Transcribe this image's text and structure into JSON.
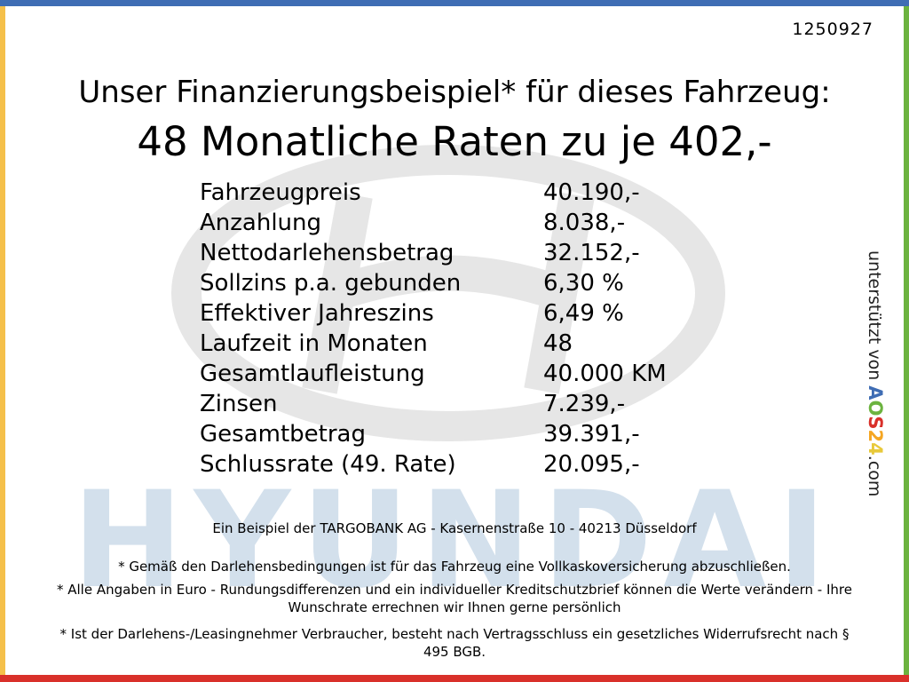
{
  "colors": {
    "top": "#3f6db4",
    "left": "#f5c04a",
    "right": "#6cb33f",
    "bottom": "#d9302a",
    "watermark_text": "#cfdcea",
    "watermark_logo": "#e4e4e4"
  },
  "watermark": {
    "brand": "HYUNDAI"
  },
  "ref_number": "1250927",
  "title_line1": "Unser Finanzierungsbeispiel* für dieses Fahrzeug:",
  "title_line2": "48 Monatliche Raten zu je 402,-",
  "rows": [
    {
      "label": "Fahrzeugpreis",
      "value": "40.190,-"
    },
    {
      "label": "Anzahlung",
      "value": "8.038,-"
    },
    {
      "label": "Nettodarlehensbetrag",
      "value": "32.152,-"
    },
    {
      "label": "Sollzins p.a. gebunden",
      "value": "6,30 %"
    },
    {
      "label": "Effektiver Jahreszins",
      "value": "6,49 %"
    },
    {
      "label": "Laufzeit in Monaten",
      "value": "48"
    },
    {
      "label": "Gesamtlaufleistung",
      "value": "40.000 KM"
    },
    {
      "label": "Zinsen",
      "value": "7.239,-"
    },
    {
      "label": "Gesamtbetrag",
      "value": "39.391,-"
    },
    {
      "label": "Schlussrate (49. Rate)",
      "value": "20.095,-"
    }
  ],
  "bank_line": "Ein Beispiel der TARGOBANK AG - Kasernenstraße 10 - 40213 Düsseldorf",
  "footnotes": [
    "* Gemäß den Darlehensbedingungen ist für das Fahrzeug eine Vollkaskoversicherung abzuschließen.",
    "* Alle Angaben in Euro - Rundungsdifferenzen und ein individueller Kreditschutzbrief können die Werte verändern - Ihre Wunschrate errechnen wir Ihnen gerne persönlich",
    "* Ist der Darlehens-/Leasingnehmer Verbraucher, besteht nach Vertragsschluss ein gesetzliches Widerrufsrecht nach § 495 BGB."
  ],
  "side": {
    "prefix": "unterstützt von ",
    "logo_a": "A",
    "logo_o": "O",
    "logo_s": "S",
    "logo_2": "2",
    "logo_4": "4",
    "suffix": ".com"
  }
}
